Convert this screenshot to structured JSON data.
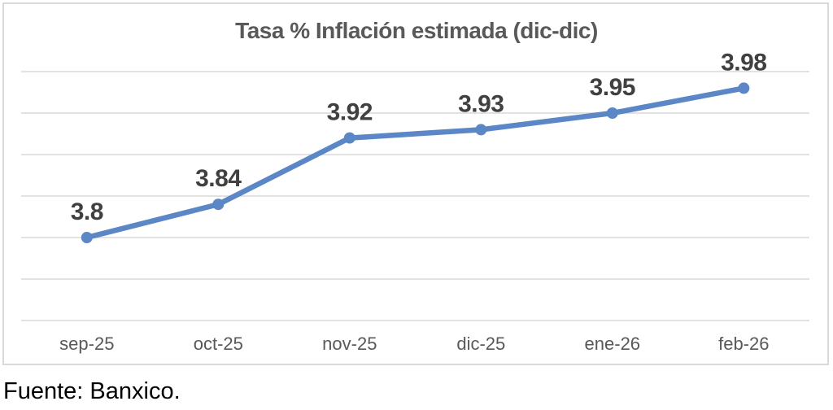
{
  "chart": {
    "title": "Tasa % Inflación estimada (dic-dic)",
    "source_note": "Fuente: Banxico."
  },
  "chart_data": {
    "type": "line",
    "title": "Tasa % Inflación estimada (dic-dic)",
    "categories": [
      "sep-25",
      "oct-25",
      "nov-25",
      "dic-25",
      "ene-26",
      "feb-26"
    ],
    "series": [
      {
        "name": "Tasa % Inflación estimada (dic-dic)",
        "values": [
          3.8,
          3.84,
          3.92,
          3.93,
          3.95,
          3.98
        ]
      }
    ],
    "data_labels": [
      "3.8",
      "3.84",
      "3.92",
      "3.93",
      "3.95",
      "3.98"
    ],
    "xlabel": "",
    "ylabel": "",
    "ylim": [
      3.7,
      4.0
    ],
    "y_major_step": 0.05,
    "y_tick_labels_visible": false,
    "grid": true,
    "legend": "none",
    "marker": "circle",
    "source_note": "Fuente: Banxico.",
    "colors": {
      "line": "#5B87C6",
      "marker": "#5B87C6",
      "gridline": "#D9D9D9",
      "frame_border": "#D9D9D9",
      "title_text": "#595959",
      "data_label_text": "#404040",
      "axis_label_text": "#595959",
      "source_text": "#000000",
      "background": "#FFFFFF"
    }
  }
}
